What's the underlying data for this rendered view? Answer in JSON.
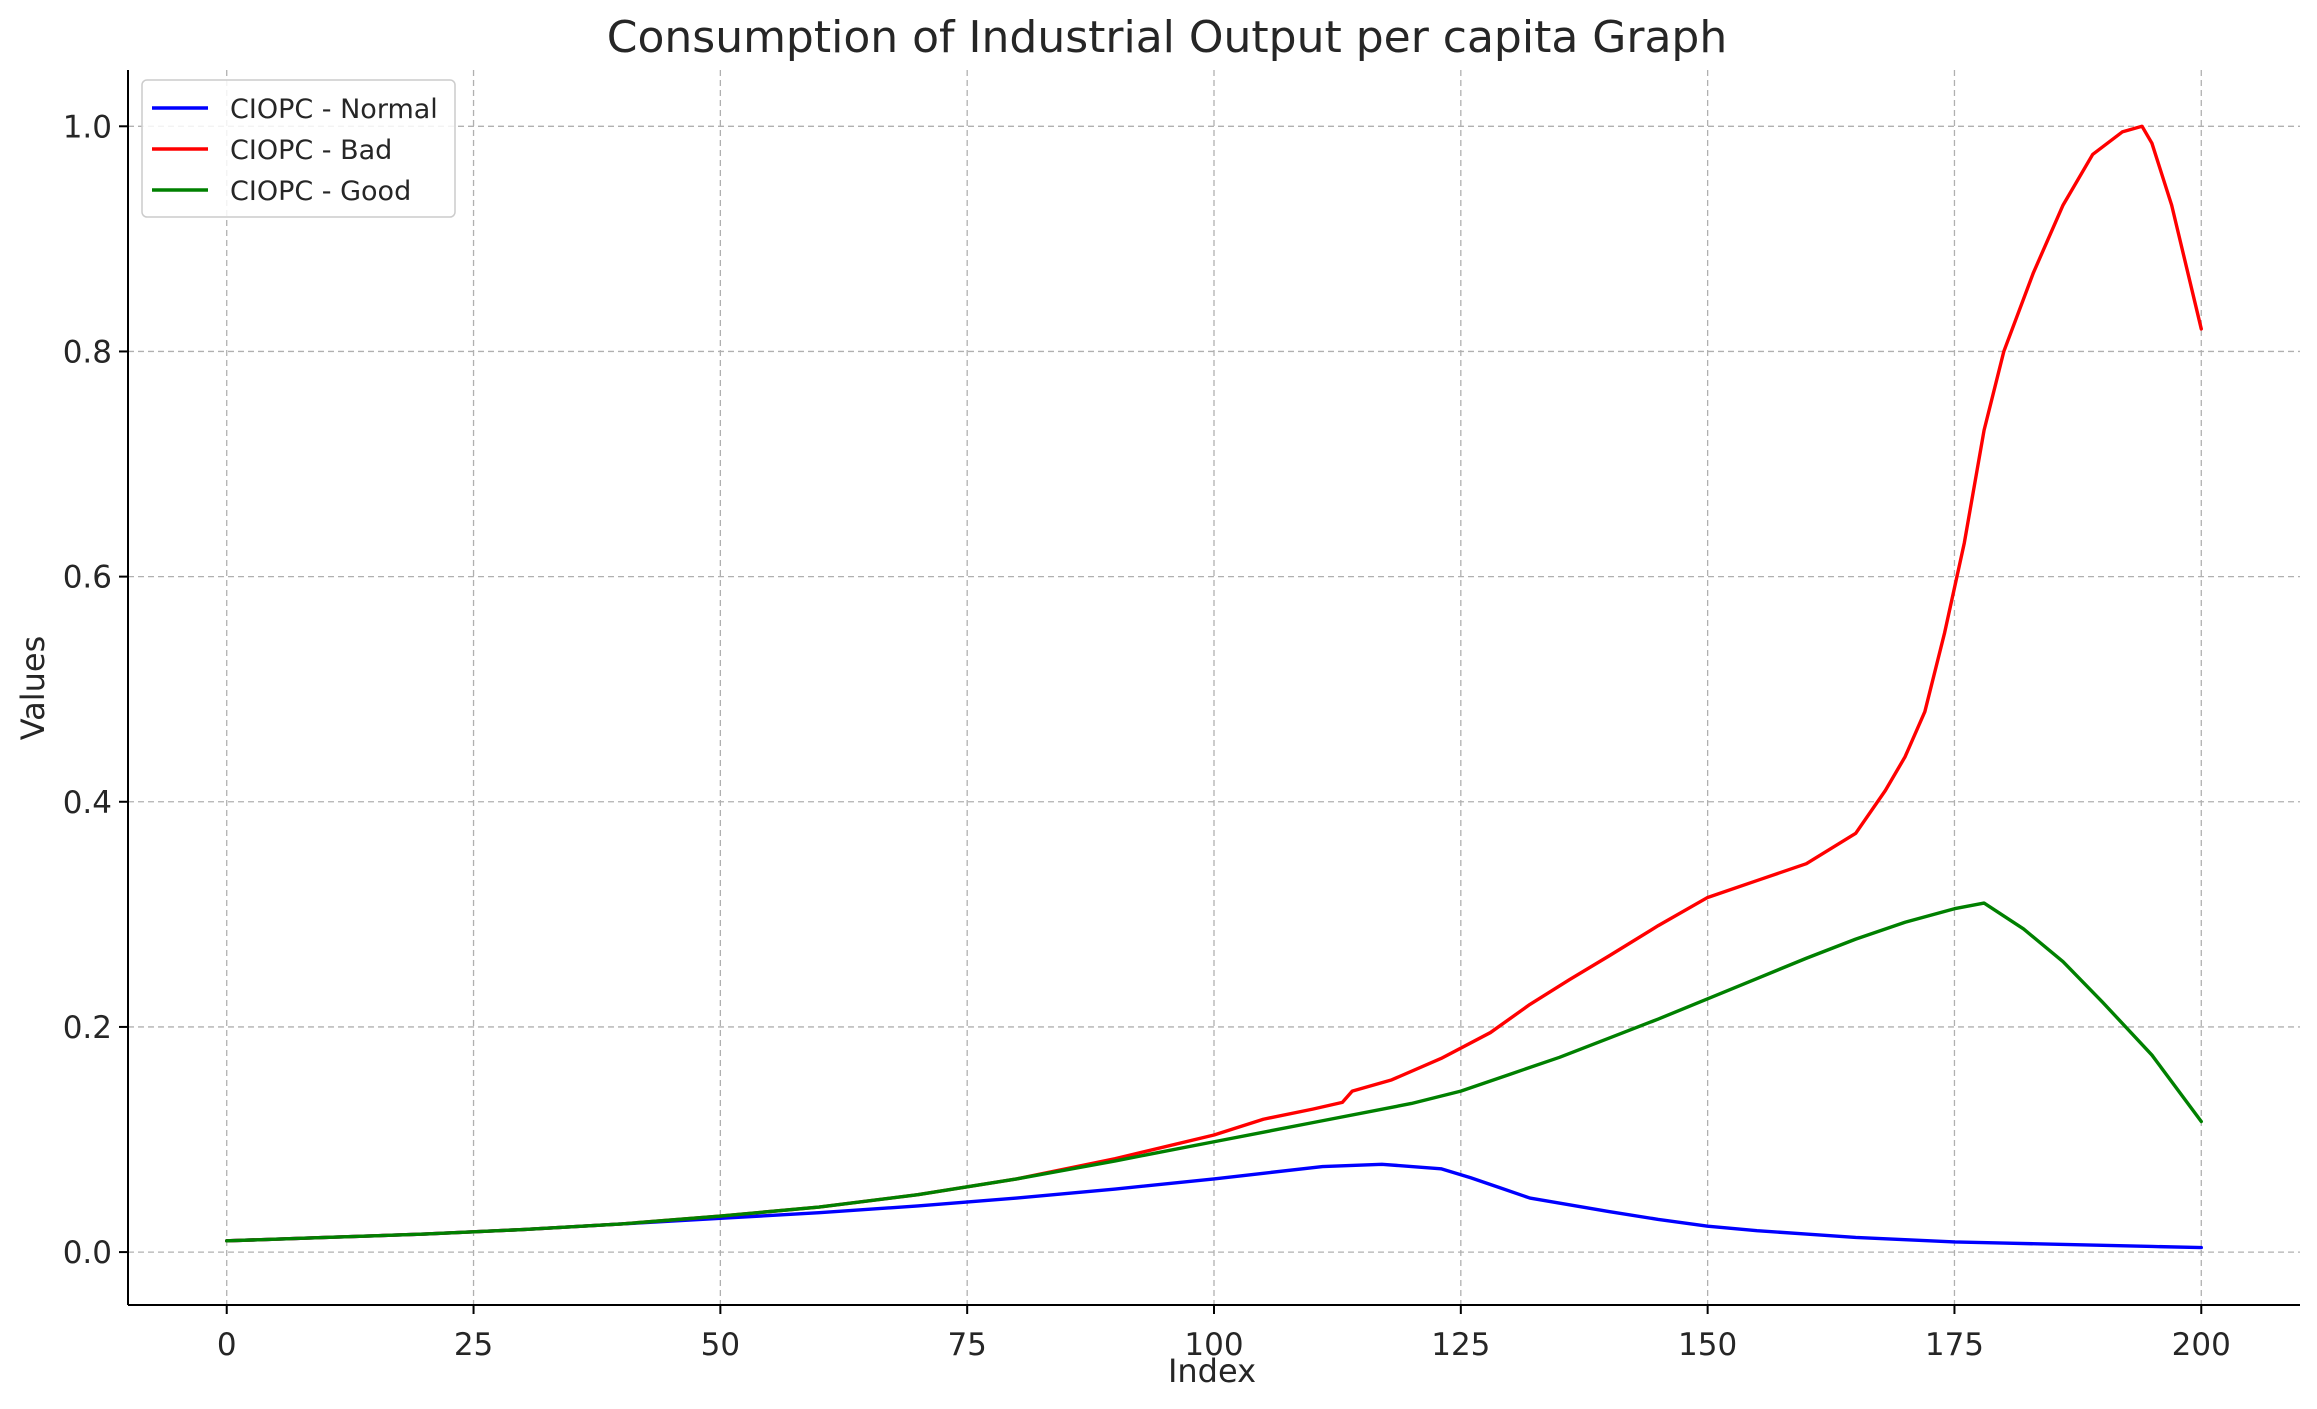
{
  "chart_data": {
    "type": "line",
    "title": "Consumption of Industrial Output per capita Graph",
    "xlabel": "Index",
    "ylabel": "Values",
    "xlim": [
      -10,
      210
    ],
    "ylim": [
      -0.047,
      1.05
    ],
    "xticks": [
      0,
      25,
      50,
      75,
      100,
      125,
      150,
      175,
      200
    ],
    "xtick_labels": [
      "0",
      "25",
      "50",
      "75",
      "100",
      "125",
      "150",
      "175",
      "200"
    ],
    "yticks": [
      0.0,
      0.2,
      0.4,
      0.6,
      0.8,
      1.0
    ],
    "ytick_labels": [
      "0.0",
      "0.2",
      "0.4",
      "0.6",
      "0.8",
      "1.0"
    ],
    "grid": true,
    "legend_position": "top-left",
    "series": [
      {
        "name": "CIOPC - Normal",
        "color": "#0000ff",
        "points": [
          [
            0,
            0.01
          ],
          [
            10,
            0.013
          ],
          [
            20,
            0.016
          ],
          [
            30,
            0.02
          ],
          [
            40,
            0.025
          ],
          [
            50,
            0.03
          ],
          [
            60,
            0.035
          ],
          [
            70,
            0.041
          ],
          [
            80,
            0.048
          ],
          [
            90,
            0.056
          ],
          [
            100,
            0.065
          ],
          [
            105,
            0.07
          ],
          [
            111,
            0.076
          ],
          [
            117,
            0.078
          ],
          [
            123,
            0.074
          ],
          [
            126,
            0.066
          ],
          [
            129,
            0.057
          ],
          [
            132,
            0.048
          ],
          [
            136,
            0.042
          ],
          [
            140,
            0.036
          ],
          [
            145,
            0.029
          ],
          [
            150,
            0.023
          ],
          [
            155,
            0.019
          ],
          [
            160,
            0.016
          ],
          [
            165,
            0.013
          ],
          [
            170,
            0.011
          ],
          [
            175,
            0.009
          ],
          [
            180,
            0.008
          ],
          [
            185,
            0.007
          ],
          [
            190,
            0.006
          ],
          [
            195,
            0.005
          ],
          [
            200,
            0.004
          ]
        ]
      },
      {
        "name": "CIOPC - Bad",
        "color": "#ff0000",
        "points": [
          [
            0,
            0.01
          ],
          [
            10,
            0.013
          ],
          [
            20,
            0.016
          ],
          [
            30,
            0.02
          ],
          [
            40,
            0.025
          ],
          [
            50,
            0.032
          ],
          [
            60,
            0.04
          ],
          [
            70,
            0.051
          ],
          [
            80,
            0.065
          ],
          [
            90,
            0.083
          ],
          [
            100,
            0.104
          ],
          [
            105,
            0.118
          ],
          [
            110,
            0.127
          ],
          [
            113,
            0.133
          ],
          [
            114,
            0.143
          ],
          [
            118,
            0.153
          ],
          [
            123,
            0.172
          ],
          [
            128,
            0.195
          ],
          [
            132,
            0.22
          ],
          [
            136,
            0.242
          ],
          [
            140,
            0.263
          ],
          [
            145,
            0.29
          ],
          [
            150,
            0.315
          ],
          [
            155,
            0.33
          ],
          [
            160,
            0.345
          ],
          [
            165,
            0.372
          ],
          [
            168,
            0.41
          ],
          [
            170,
            0.44
          ],
          [
            172,
            0.48
          ],
          [
            174,
            0.55
          ],
          [
            176,
            0.63
          ],
          [
            178,
            0.73
          ],
          [
            180,
            0.8
          ],
          [
            183,
            0.87
          ],
          [
            186,
            0.93
          ],
          [
            189,
            0.975
          ],
          [
            192,
            0.995
          ],
          [
            194,
            1.0
          ],
          [
            195,
            0.985
          ],
          [
            197,
            0.93
          ],
          [
            200,
            0.82
          ]
        ]
      },
      {
        "name": "CIOPC - Good",
        "color": "#008000",
        "points": [
          [
            0,
            0.01
          ],
          [
            10,
            0.013
          ],
          [
            20,
            0.016
          ],
          [
            30,
            0.02
          ],
          [
            40,
            0.025
          ],
          [
            50,
            0.032
          ],
          [
            60,
            0.04
          ],
          [
            70,
            0.051
          ],
          [
            80,
            0.065
          ],
          [
            90,
            0.081
          ],
          [
            100,
            0.098
          ],
          [
            110,
            0.115
          ],
          [
            120,
            0.132
          ],
          [
            125,
            0.143
          ],
          [
            130,
            0.158
          ],
          [
            135,
            0.173
          ],
          [
            140,
            0.19
          ],
          [
            145,
            0.207
          ],
          [
            150,
            0.225
          ],
          [
            155,
            0.243
          ],
          [
            160,
            0.261
          ],
          [
            165,
            0.278
          ],
          [
            170,
            0.293
          ],
          [
            175,
            0.305
          ],
          [
            178,
            0.31
          ],
          [
            182,
            0.287
          ],
          [
            186,
            0.258
          ],
          [
            190,
            0.222
          ],
          [
            195,
            0.175
          ],
          [
            200,
            0.116
          ]
        ]
      }
    ]
  }
}
